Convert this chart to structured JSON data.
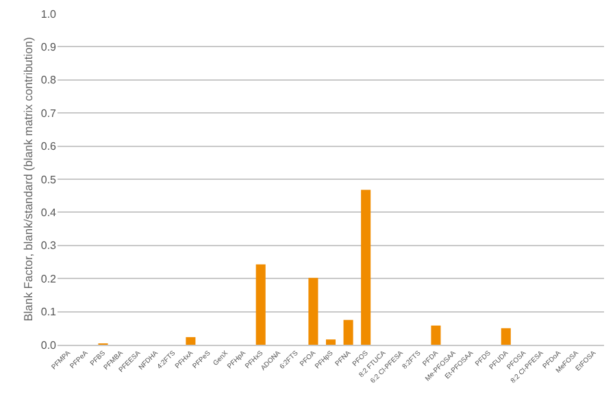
{
  "chart_data": {
    "type": "bar",
    "ylabel": "Blank Factor, blank/standard (blank matrix contribution)",
    "categories": [
      "PFMPA",
      "PFPeA",
      "PFBS",
      "PFMBA",
      "PFEESA",
      "NFDHA",
      "4:2FTS",
      "PFHxA",
      "PFPeS",
      "GenX",
      "PFHpA",
      "PFHxS",
      "ADONA",
      "6:2FTS",
      "PFOA",
      "PFHpS",
      "PFNA",
      "PFOS",
      "8:2 FTUCA",
      "6:2 Cl-PFESA",
      "8:2FTS",
      "PFDA",
      "Me-PFOSAA",
      "Et-PFOSAA",
      "PFDS",
      "PFUDA",
      "PFOSA",
      "8:2 Cl-PFESA",
      "PFDoA",
      "MeFOSA",
      "EtFOSA"
    ],
    "values": [
      0,
      0,
      0.003,
      0,
      0,
      0,
      0,
      0.023,
      0,
      0,
      0,
      0.243,
      0,
      0,
      0.202,
      0.016,
      0.075,
      0.468,
      0,
      0,
      0,
      0.058,
      0,
      0,
      0,
      0.05,
      0,
      0,
      0,
      0,
      0
    ],
    "color": "#f08c00",
    "ylim": [
      0,
      1.0
    ],
    "yticks": [
      {
        "value": 0,
        "label": "0.0"
      },
      {
        "value": 0.1,
        "label": "0.1"
      },
      {
        "value": 0.2,
        "label": "0.2"
      },
      {
        "value": 0.3,
        "label": "0.3"
      },
      {
        "value": 0.4,
        "label": "0.4"
      },
      {
        "value": 0.5,
        "label": "0.5"
      },
      {
        "value": 0.6,
        "label": "0.6"
      },
      {
        "value": 0.7,
        "label": "0.7"
      },
      {
        "value": 0.8,
        "label": "0.8"
      },
      {
        "value": 0.9,
        "label": "0.9"
      },
      {
        "value": 1.0,
        "label": "1.0"
      }
    ],
    "grid": "y"
  }
}
